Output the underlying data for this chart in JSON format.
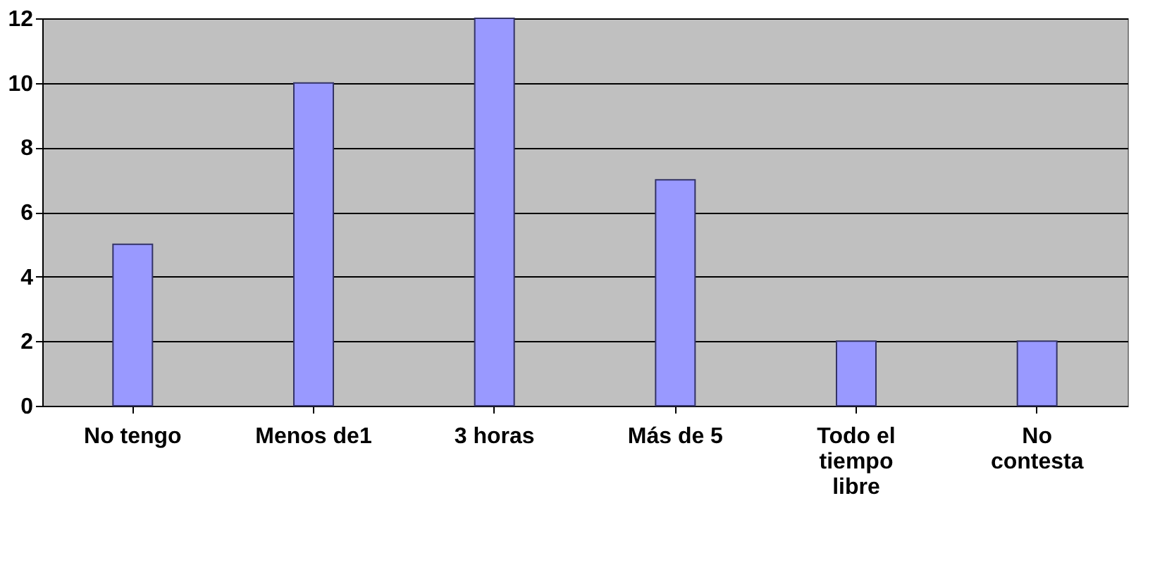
{
  "chart_data": {
    "type": "bar",
    "categories": [
      "No tengo",
      "Menos de1",
      "3 horas",
      "Más de 5",
      "Todo el tiempo libre",
      "No contesta"
    ],
    "values": [
      5,
      10,
      12,
      7,
      2,
      2
    ],
    "color": "#9999ff",
    "ylim": [
      0,
      12
    ],
    "yticks": [
      0,
      2,
      4,
      6,
      8,
      10,
      12
    ],
    "grid": "y"
  }
}
